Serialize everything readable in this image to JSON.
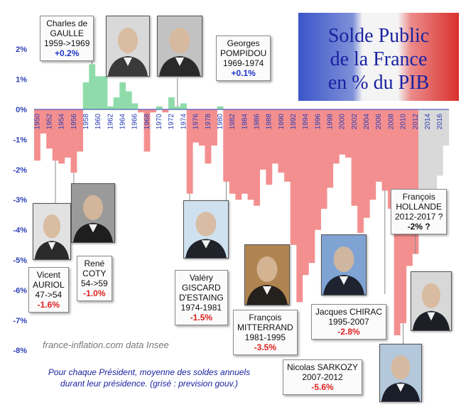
{
  "title_line1": "Solde Public",
  "title_line2": "de la France",
  "title_line3": "en % du PIB",
  "watermark": "france-inflation.com  data Insee",
  "caption_line1": "Pour chaque Président, moyenne des soldes annuels",
  "caption_line2": "durant leur présidence. (grisé : prevision gouv.)",
  "colors": {
    "positive": "#8fdcaa",
    "negative": "#f48f8f",
    "forecast": "#d9d9d9",
    "axis_text": "#2b3fb5",
    "positive_value": "#1e35c8",
    "negative_value": "#e02020"
  },
  "presidents": [
    {
      "id": "degaulle",
      "line1": "Charles de",
      "line2": "GAULLE",
      "line3": "1959->1969",
      "value": "+0.2%",
      "sign": "pos",
      "photo_colors": [
        "#d9d9d9",
        "#3a3a3a"
      ]
    },
    {
      "id": "pompidou",
      "line1": "Georges",
      "line2": "POMPIDOU",
      "line3": "1969-1974",
      "value": "+0.1%",
      "sign": "pos",
      "photo_colors": [
        "#c2c2c2",
        "#2a2a2a"
      ]
    },
    {
      "id": "auriol",
      "line1": "Vicent",
      "line2": "AURIOL",
      "line3": "47->54",
      "value": "-1.6%",
      "sign": "neg",
      "photo_colors": [
        "#e2e2e2",
        "#2b2b2b"
      ]
    },
    {
      "id": "coty",
      "line1": "René",
      "line2": "COTY",
      "line3": "54->59",
      "value": "-1.0%",
      "sign": "neg",
      "photo_colors": [
        "#9a9a9a",
        "#1e1e1e"
      ]
    },
    {
      "id": "giscard",
      "line1": "Valéry",
      "line2": "GISCARD",
      "line3": "D'ESTAING",
      "line4": "1974-1981",
      "value": "-1.5%",
      "sign": "neg",
      "photo_colors": [
        "#cfe1ef",
        "#20242a"
      ]
    },
    {
      "id": "mitterrand",
      "line1": "François",
      "line2": "MITTERRAND",
      "line3": "1981-1995",
      "value": "-3.5%",
      "sign": "neg",
      "photo_colors": [
        "#b08450",
        "#24201c"
      ]
    },
    {
      "id": "chirac",
      "line1": "Jacques CHIRAC",
      "line2": "1995-2007",
      "value": "-2.8%",
      "sign": "neg",
      "photo_colors": [
        "#7fa4d4",
        "#1d2430"
      ]
    },
    {
      "id": "sarkozy",
      "line1": "Nicolas SARKOZY",
      "line2": "2007-2012",
      "value": "-5.6%",
      "sign": "neg",
      "photo_colors": [
        "#b4c8dc",
        "#1a1e28"
      ]
    },
    {
      "id": "hollande",
      "line1": "François",
      "line2": "HOLLANDE",
      "line3": "2012-2017 ?",
      "value": "-2% ?",
      "sign": "neg",
      "photo_colors": [
        "#d8d8d8",
        "#1c1f26"
      ]
    }
  ],
  "chart_data": {
    "type": "bar",
    "title": "Solde Public de la France en % du PIB",
    "ylim": [
      -8,
      2.5
    ],
    "y_ticks": [
      "2%",
      "1%",
      "0%",
      "-1%",
      "-2%",
      "-3%",
      "-4%",
      "-5%",
      "-6%",
      "-7%",
      "-8%"
    ],
    "x_tick_labels": [
      "1950",
      "1952",
      "1954",
      "1956",
      "1958",
      "1960",
      "1962",
      "1964",
      "1966",
      "1968",
      "1970",
      "1972",
      "1974",
      "1976",
      "1978",
      "1980",
      "1982",
      "1984",
      "1986",
      "1988",
      "1990",
      "1992",
      "1994",
      "1996",
      "1998",
      "2000",
      "2002",
      "2004",
      "2006",
      "2008",
      "2010",
      "2012",
      "2014",
      "2016"
    ],
    "grid": false,
    "forecast_from_year": 2013,
    "years": [
      1950,
      1951,
      1952,
      1953,
      1954,
      1955,
      1956,
      1957,
      1958,
      1959,
      1960,
      1961,
      1962,
      1963,
      1964,
      1965,
      1966,
      1967,
      1968,
      1969,
      1970,
      1971,
      1972,
      1973,
      1974,
      1975,
      1976,
      1977,
      1978,
      1979,
      1980,
      1981,
      1982,
      1983,
      1984,
      1985,
      1986,
      1987,
      1988,
      1989,
      1990,
      1991,
      1992,
      1993,
      1994,
      1995,
      1996,
      1997,
      1998,
      1999,
      2000,
      2001,
      2002,
      2003,
      2004,
      2005,
      2006,
      2007,
      2008,
      2009,
      2010,
      2011,
      2012,
      2013,
      2014,
      2015,
      2016,
      2017
    ],
    "values": [
      -1.7,
      -0.8,
      -1.3,
      -1.7,
      -1.8,
      -1.6,
      -2.1,
      -1.4,
      0.9,
      1.5,
      1.1,
      1.1,
      0.1,
      0.4,
      0.9,
      0.6,
      0.2,
      -0.1,
      -1.4,
      -0.1,
      0.1,
      -0.1,
      0.4,
      0.1,
      0.2,
      -2.8,
      -1.1,
      -1.2,
      -1.8,
      -1.2,
      0.1,
      -2.4,
      -2.8,
      -3.0,
      -2.8,
      -3.0,
      -3.2,
      -2.0,
      -2.5,
      -1.8,
      -2.1,
      -2.4,
      -4.5,
      -6.4,
      -5.5,
      -5.1,
      -4.0,
      -3.3,
      -2.6,
      -1.8,
      -1.5,
      -1.6,
      -3.2,
      -4.1,
      -3.6,
      -3.0,
      -2.4,
      -2.7,
      -3.3,
      -7.5,
      -7.1,
      -5.2,
      -4.8,
      -4.1,
      -3.6,
      -3.0,
      -2.2,
      -1.2
    ]
  }
}
